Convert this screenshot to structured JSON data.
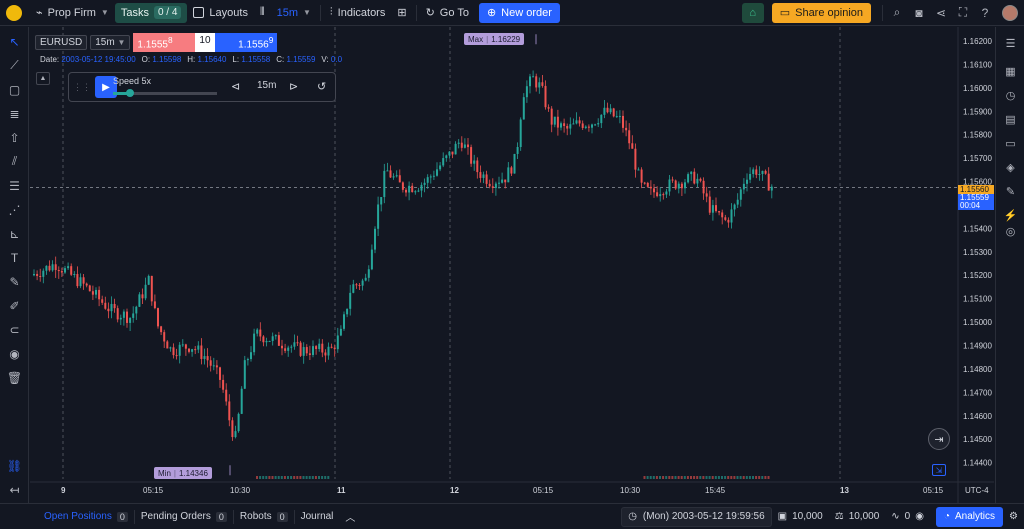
{
  "topbar": {
    "account": "Prop Firm",
    "tasks_label": "Tasks",
    "tasks_count": "0 / 4",
    "layouts": "Layouts",
    "interval": "15m",
    "indicators": "Indicators",
    "goto": "Go To",
    "new_order": "New order",
    "share": "Share opinion"
  },
  "legend": {
    "symbol": "EURUSD",
    "interval": "15m",
    "bid": "1.1555",
    "bid_sup": "8",
    "qty": "10",
    "ask": "1.1556",
    "ask_sup": "9",
    "date_label": "Date:",
    "date": "2003-05-12 19:45:00",
    "o_label": "O:",
    "o": "1.15598",
    "h_label": "H:",
    "h": "1.15640",
    "l_label": "L:",
    "l": "1.15558",
    "c_label": "C:",
    "c": "1.15559",
    "v_label": "V:",
    "v": "0.0"
  },
  "replay": {
    "speed_label": "Speed 5x",
    "speed_level": 0.16,
    "interval": "15m"
  },
  "price_axis": {
    "ticks": [
      "1.16200",
      "1.16100",
      "1.16000",
      "1.15900",
      "1.15800",
      "1.15700",
      "1.15600",
      "1.15500",
      "1.15400",
      "1.15300",
      "1.15200",
      "1.15100",
      "1.15000",
      "1.14900",
      "1.14800",
      "1.14700",
      "1.14600",
      "1.14500",
      "1.14400"
    ],
    "current_price": "1.15559",
    "countdown": "00:04",
    "orange_price": "1.15560"
  },
  "time_axis": {
    "labels": [
      "9",
      "05:15",
      "10:30",
      "11",
      "12",
      "05:15",
      "10:30",
      "15:45",
      "13",
      "05:15"
    ],
    "timezone": "UTC-4"
  },
  "markers": {
    "max_label": "Max",
    "max_value": "1.16229",
    "min_label": "Min",
    "min_value": "1.14346"
  },
  "bottombar": {
    "open_positions": "Open Positions",
    "open_positions_count": "0",
    "pending_orders": "Pending Orders",
    "pending_orders_count": "0",
    "robots": "Robots",
    "robots_count": "0",
    "journal": "Journal",
    "datetime": "(Mon) 2003-05-12 19:59:56",
    "balance": "10,000",
    "equity": "10,000",
    "pnl": "0",
    "analytics": "Analytics"
  },
  "colors": {
    "up": "#26a69a",
    "down": "#ef5350",
    "accent": "#2962ff",
    "background": "#131722"
  }
}
